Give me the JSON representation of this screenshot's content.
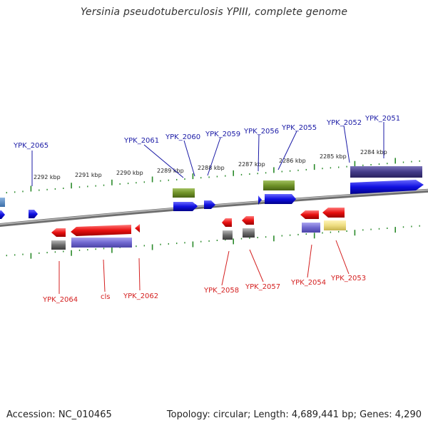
{
  "title": "Yersinia pseudotuberculosis YPIII, complete genome",
  "footer": {
    "accession": "Accession: NC_010465",
    "topology": "Topology: circular; Length: 4,689,441 bp; Genes: 4,290"
  },
  "scale_labels": [
    "2292 kbp",
    "2291 kbp",
    "2290 kbp",
    "2289 kbp",
    "2288 kbp",
    "2287 kbp",
    "2286 kbp",
    "2285 kbp",
    "2284 kbp"
  ],
  "forward_labels": [
    "YPK_2065",
    "YPK_2061",
    "YPK_2060",
    "YPK_2059",
    "YPK_2056",
    "YPK_2055",
    "YPK_2052",
    "YPK_2051"
  ],
  "reverse_labels": [
    "YPK_2064",
    "cls",
    "YPK_2062",
    "YPK_2058",
    "YPK_2057",
    "YPK_2054",
    "YPK_2053"
  ],
  "colors": {
    "forward_cds": "#1010e0",
    "reverse_cds": "#e81010",
    "backbone": "#888888",
    "ticks": "#2a8a2a",
    "label_forward": "#1a1aa6",
    "label_reverse": "#d41f1f"
  }
}
